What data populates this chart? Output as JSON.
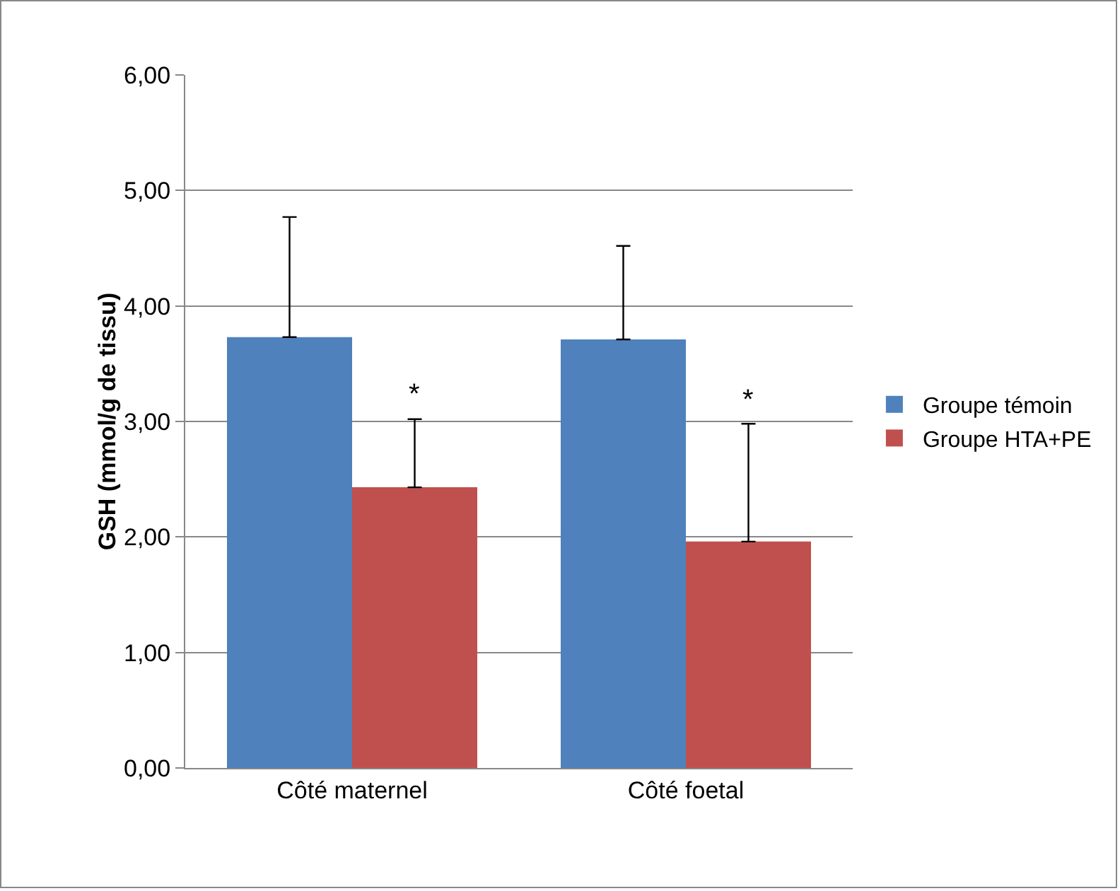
{
  "chart_data": {
    "type": "bar",
    "ylabel": "GSH (mmol/g de tissu)",
    "categories": [
      "Côté maternel",
      "Côté foetal"
    ],
    "series": [
      {
        "name": "Groupe témoin",
        "color": "#4f81bd",
        "values": [
          3.73,
          3.71
        ],
        "errors": [
          [
            3.73,
            4.77
          ],
          [
            3.71,
            4.52
          ]
        ]
      },
      {
        "name": "Groupe HTA+PE",
        "color": "#c0504d",
        "values": [
          2.43,
          1.96
        ],
        "errors": [
          [
            2.43,
            3.02
          ],
          [
            1.96,
            2.98
          ]
        ]
      }
    ],
    "annotations": [
      {
        "text": "*",
        "x": "Côté maternel",
        "y": 3.02
      },
      {
        "text": "*",
        "x": "Côté foetal",
        "y": 2.98
      }
    ],
    "ylim": [
      0,
      6
    ],
    "yticks": [
      {
        "value": 0,
        "label": "0,00"
      },
      {
        "value": 1,
        "label": "1,00"
      },
      {
        "value": 2,
        "label": "2,00"
      },
      {
        "value": 3,
        "label": "3,00"
      },
      {
        "value": 4,
        "label": "4,00"
      },
      {
        "value": 5,
        "label": "5,00"
      },
      {
        "value": 6,
        "label": "6,00"
      }
    ],
    "grid": "y",
    "legend": "right"
  }
}
